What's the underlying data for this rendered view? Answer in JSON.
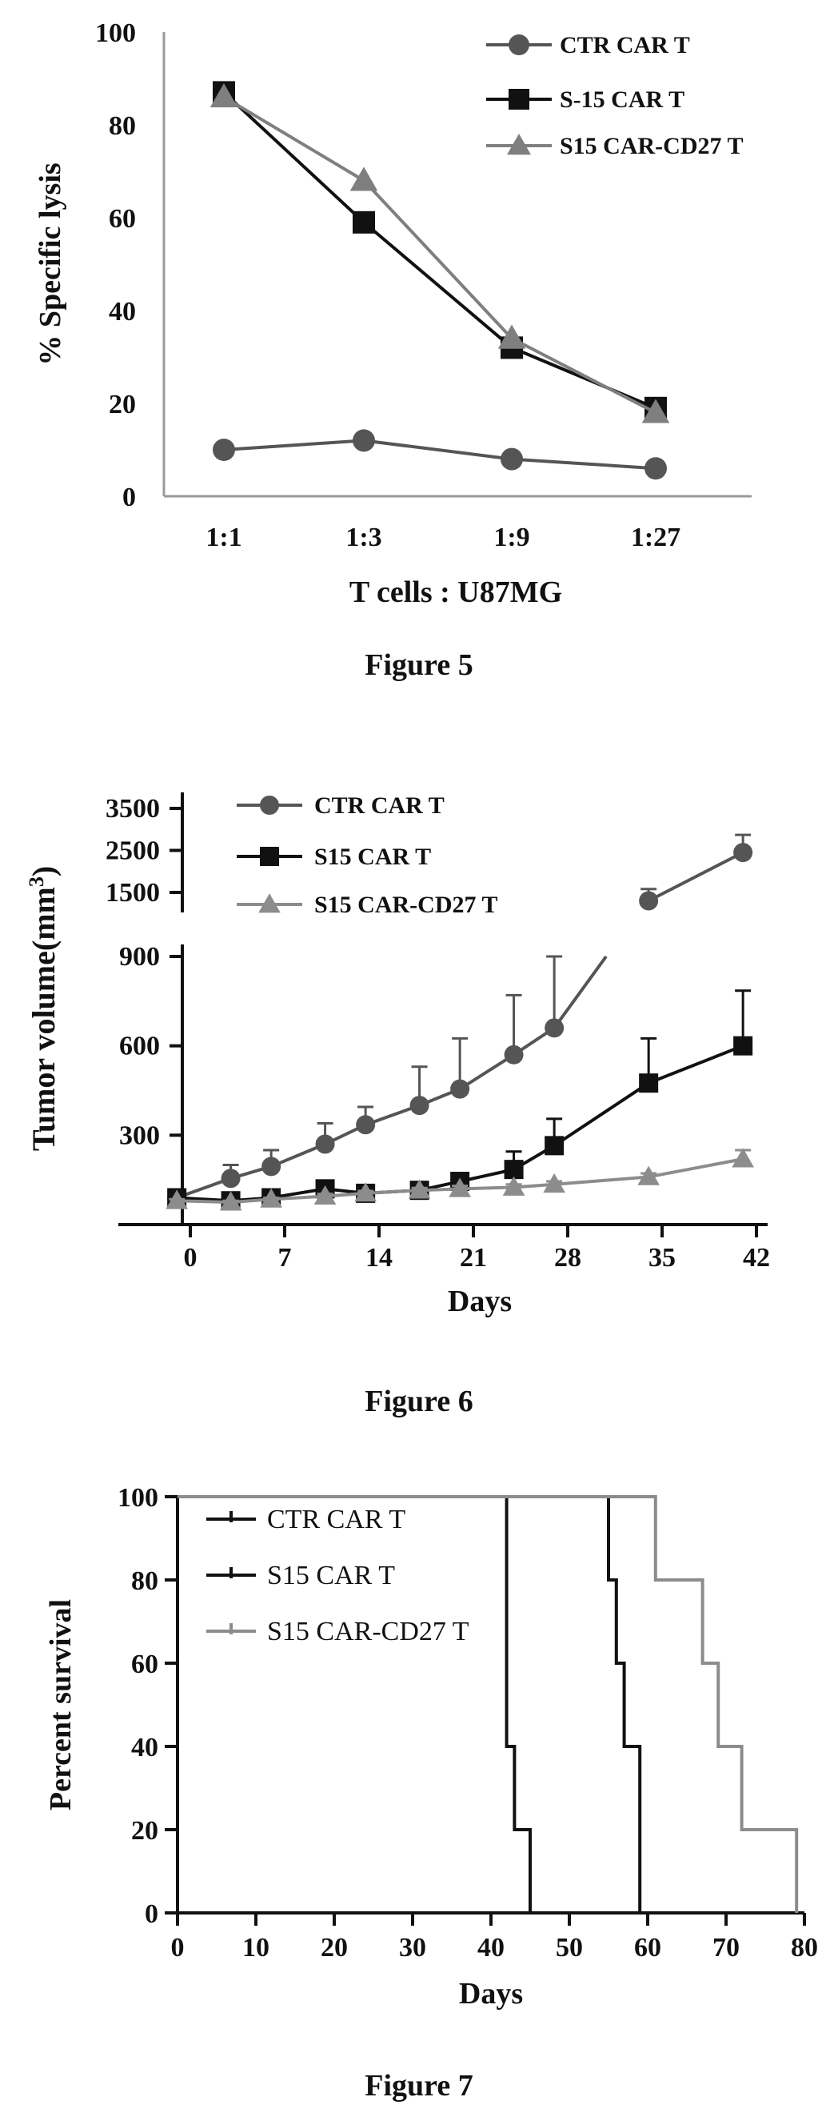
{
  "chart_data": [
    {
      "type": "line",
      "title": "",
      "caption": "Figure 5",
      "xlabel": "T cells : U87MG",
      "ylabel": "% Specific lysis",
      "categories": [
        "1:1",
        "1:3",
        "1:9",
        "1:27"
      ],
      "ylim": [
        0,
        100
      ],
      "yticks": [
        0,
        20,
        40,
        60,
        80,
        100
      ],
      "legend_position": "top-right",
      "series": [
        {
          "name": "CTR CAR T",
          "marker": "circle",
          "color": "#555555",
          "values": [
            10,
            12,
            8,
            6
          ]
        },
        {
          "name": "S-15 CAR T",
          "marker": "square",
          "color": "#111111",
          "values": [
            87,
            59,
            32,
            19
          ]
        },
        {
          "name": "S15 CAR-CD27 T",
          "marker": "triangle",
          "color": "#7f7f7f",
          "values": [
            86,
            68,
            34,
            18
          ]
        }
      ]
    },
    {
      "type": "line",
      "title": "",
      "caption": "Figure 6",
      "xlabel": "Days",
      "ylabel": "Tumor volume(mm³)",
      "ylabel_main": "Tumor volume(mm",
      "ylabel_sup": "3",
      "ylabel_end": ")",
      "xlim": [
        -2,
        43
      ],
      "xticks": [
        "0",
        "7",
        "14",
        "21",
        "28",
        "35",
        "42"
      ],
      "ylim_lower": [
        0,
        900
      ],
      "yticks_lower": [
        "300",
        "600",
        "900"
      ],
      "ylim_upper": [
        1000,
        3500
      ],
      "yticks_upper": [
        "1500",
        "2500",
        "3500"
      ],
      "broken_axis": true,
      "legend_position": "top-left",
      "series": [
        {
          "name": "CTR CAR T",
          "marker": "circle",
          "color": "#555555",
          "x": [
            -1,
            3,
            6,
            10,
            13,
            17,
            20,
            24,
            27,
            34,
            41
          ],
          "y": [
            90,
            155,
            195,
            270,
            335,
            400,
            455,
            570,
            660,
            1300,
            2450
          ],
          "error": [
            10,
            45,
            55,
            70,
            60,
            130,
            170,
            200,
            240,
            280,
            420
          ]
        },
        {
          "name": "S15 CAR T",
          "marker": "square",
          "color": "#111111",
          "x": [
            -1,
            3,
            6,
            10,
            13,
            17,
            20,
            24,
            27,
            34,
            41
          ],
          "y": [
            90,
            80,
            90,
            120,
            105,
            115,
            145,
            185,
            265,
            475,
            600
          ],
          "error": [
            8,
            10,
            12,
            15,
            12,
            15,
            20,
            60,
            90,
            150,
            185
          ]
        },
        {
          "name": "S15 CAR-CD27 T",
          "marker": "triangle",
          "color": "#8c8c8c",
          "x": [
            -1,
            3,
            6,
            10,
            13,
            17,
            20,
            24,
            27,
            34,
            41
          ],
          "y": [
            80,
            75,
            85,
            95,
            105,
            115,
            120,
            125,
            135,
            160,
            220
          ],
          "error": [
            5,
            5,
            5,
            8,
            8,
            8,
            10,
            10,
            10,
            12,
            30
          ]
        }
      ]
    },
    {
      "type": "line",
      "subtype": "survival-step",
      "title": "",
      "caption": "Figure 7",
      "xlabel": "Days",
      "ylabel": "Percent survival",
      "xlim": [
        0,
        80
      ],
      "xticks": [
        "0",
        "10",
        "20",
        "30",
        "40",
        "50",
        "60",
        "70",
        "80"
      ],
      "ylim": [
        0,
        100
      ],
      "yticks": [
        "0",
        "20",
        "40",
        "60",
        "80",
        "100"
      ],
      "legend_position": "top-left",
      "series": [
        {
          "name": "CTR CAR T",
          "color": "#111111",
          "steps": [
            [
              0,
              100
            ],
            [
              42,
              40
            ],
            [
              43,
              20
            ],
            [
              45,
              0
            ]
          ]
        },
        {
          "name": "S15 CAR T",
          "color": "#111111",
          "steps": [
            [
              0,
              100
            ],
            [
              55,
              80
            ],
            [
              56,
              60
            ],
            [
              57,
              40
            ],
            [
              59,
              0
            ]
          ]
        },
        {
          "name": "S15 CAR-CD27 T",
          "color": "#8c8c8c",
          "steps": [
            [
              0,
              100
            ],
            [
              61,
              80
            ],
            [
              67,
              60
            ],
            [
              69,
              40
            ],
            [
              72,
              20
            ],
            [
              79,
              0
            ]
          ]
        }
      ]
    }
  ]
}
